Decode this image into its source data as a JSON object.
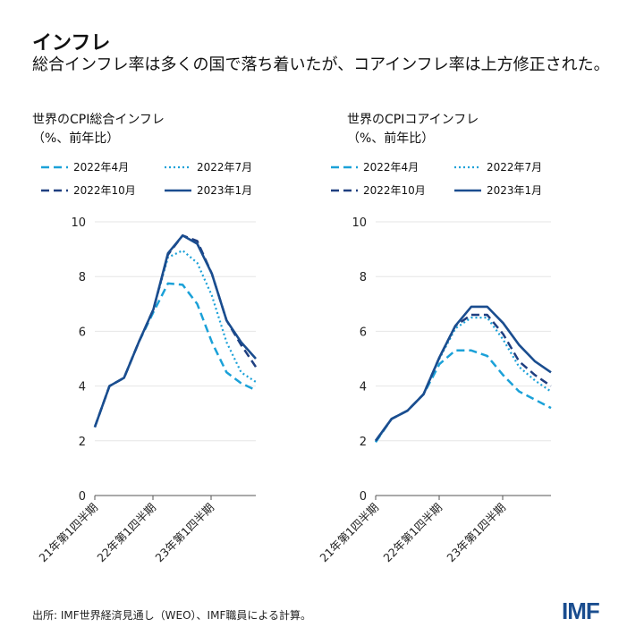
{
  "header": {
    "title": "インフレ",
    "subtitle": "総合インフレ率は多くの国で落ち着いたが、コアインフレ率は上方修正された。"
  },
  "legend": [
    {
      "label": "2022年4月",
      "style": "dashed",
      "color": "#1ba1d8"
    },
    {
      "label": "2022年7月",
      "style": "dotted",
      "color": "#1ba1d8"
    },
    {
      "label": "2022年10月",
      "style": "dashed",
      "color": "#1f3f80"
    },
    {
      "label": "2023年1月",
      "style": "solid",
      "color": "#1a4d8f"
    }
  ],
  "chart_data": [
    {
      "type": "line",
      "title": "世界のCPI総合インフレ",
      "ylabel": "（%、前年比）",
      "ylim": [
        0,
        10
      ],
      "yticks": [
        0,
        2,
        4,
        6,
        8,
        10
      ],
      "grid": true,
      "x": [
        "21Q1",
        "21Q2",
        "21Q3",
        "21Q4",
        "22Q1",
        "22Q2",
        "22Q3",
        "22Q4",
        "23Q1",
        "23Q2",
        "23Q3",
        "23Q4"
      ],
      "xtick_labels": [
        "21年第1四半期",
        "22年第1四半期",
        "23年第1四半期"
      ],
      "series": [
        {
          "name": "2022年4月",
          "values": [
            2.5,
            4.0,
            4.3,
            5.6,
            6.7,
            7.75,
            7.7,
            7.0,
            5.6,
            4.5,
            4.1,
            3.85
          ]
        },
        {
          "name": "2022年7月",
          "values": [
            2.5,
            4.0,
            4.3,
            5.6,
            6.8,
            8.7,
            8.95,
            8.5,
            7.3,
            5.6,
            4.5,
            4.15
          ]
        },
        {
          "name": "2022年10月",
          "values": [
            2.5,
            4.0,
            4.3,
            5.6,
            6.8,
            8.8,
            9.5,
            9.3,
            8.1,
            6.4,
            5.5,
            4.7
          ]
        },
        {
          "name": "2023年1月",
          "values": [
            2.5,
            4.0,
            4.3,
            5.6,
            6.8,
            8.85,
            9.5,
            9.2,
            8.1,
            6.4,
            5.6,
            5.0
          ]
        }
      ]
    },
    {
      "type": "line",
      "title": "世界のCPIコアインフレ",
      "ylabel": "（%、前年比）",
      "ylim": [
        0,
        10
      ],
      "yticks": [
        0,
        2,
        4,
        6,
        8,
        10
      ],
      "grid": true,
      "x": [
        "21Q1",
        "21Q2",
        "21Q3",
        "21Q4",
        "22Q1",
        "22Q2",
        "22Q3",
        "22Q4",
        "23Q1",
        "23Q2",
        "23Q3",
        "23Q4"
      ],
      "xtick_labels": [
        "21年第1四半期",
        "22年第1四半期",
        "23年第1四半期"
      ],
      "series": [
        {
          "name": "2022年4月",
          "values": [
            1.95,
            2.8,
            3.1,
            3.7,
            4.8,
            5.3,
            5.3,
            5.1,
            4.4,
            3.8,
            3.5,
            3.2
          ]
        },
        {
          "name": "2022年7月",
          "values": [
            1.95,
            2.8,
            3.1,
            3.7,
            5.0,
            6.1,
            6.5,
            6.5,
            5.7,
            4.7,
            4.2,
            3.8
          ]
        },
        {
          "name": "2022年10月",
          "values": [
            2.0,
            2.8,
            3.1,
            3.7,
            5.05,
            6.2,
            6.6,
            6.6,
            5.9,
            4.9,
            4.4,
            4.0
          ]
        },
        {
          "name": "2023年1月",
          "values": [
            2.0,
            2.8,
            3.1,
            3.7,
            5.05,
            6.2,
            6.9,
            6.9,
            6.3,
            5.5,
            4.9,
            4.5
          ]
        }
      ]
    }
  ],
  "footer": {
    "source": "出所: IMF世界経済見通し（WEO）、IMF職員による計算。",
    "logo": "IMF"
  }
}
